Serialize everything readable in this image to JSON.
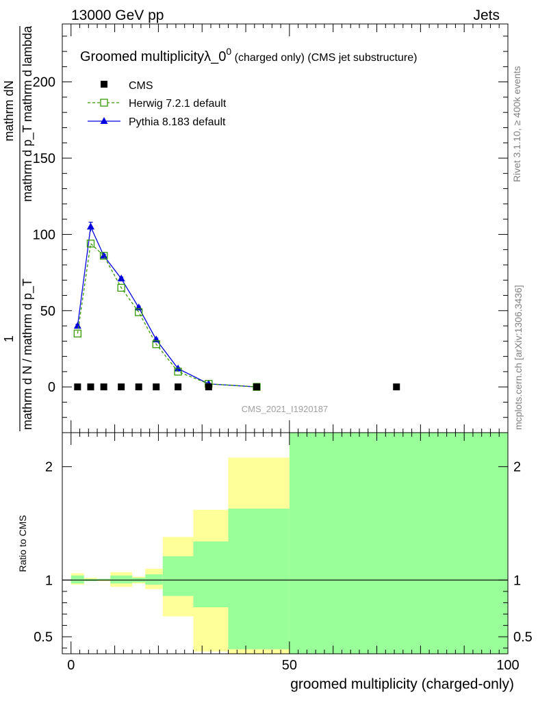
{
  "header": {
    "energy_label": "13000 GeV pp",
    "category_label": "Jets"
  },
  "title": {
    "main": "Groomed multiplicityλ_0",
    "superscript": "0",
    "suffix": " (charged only) (CMS jet substructure)"
  },
  "side_labels": {
    "rivet": "Rivet 3.1.10, ≥ 400k events",
    "mcplots": "mcplots.cern.ch [arXiv:1306.3436]"
  },
  "watermark": "CMS_2021_I1920187",
  "axes": {
    "ylabel_main_numerator": "mathrm dN",
    "ylabel_main_numerator_full": "mathrm d p_T mathrm d lambda",
    "ylabel_main_one": "1",
    "ylabel_main_denominator": "mathrm d N / mathrm d p_T",
    "ylabel_ratio": "Ratio to CMS",
    "xlabel": "groomed multiplicity (charged-only)"
  },
  "chart_data": {
    "type": "line",
    "main": {
      "xlim": [
        -2,
        100
      ],
      "ylim": [
        -30,
        238
      ],
      "yticks": [
        0,
        50,
        100,
        150,
        200
      ],
      "series": [
        {
          "name": "CMS",
          "color": "#000000",
          "marker": "square",
          "x": [
            1.5,
            4.5,
            7.5,
            11.5,
            15.5,
            19.5,
            24.5,
            31.5,
            42.5,
            74.5
          ],
          "y": [
            0,
            0,
            0,
            0,
            0,
            0,
            0,
            0,
            0,
            0
          ]
        },
        {
          "name": "Herwig 7.2.1 default",
          "color": "#339900",
          "marker": "open-square",
          "line": "dashed",
          "x": [
            1.5,
            4.5,
            7.5,
            11.5,
            15.5,
            19.5,
            24.5,
            31.5,
            42.5
          ],
          "y": [
            35,
            94,
            86,
            65,
            49,
            28,
            10,
            2,
            0
          ]
        },
        {
          "name": "Pythia 8.183 default",
          "color": "#0000dd",
          "marker": "triangle",
          "line": "solid",
          "x": [
            1.5,
            4.5,
            7.5,
            11.5,
            15.5,
            19.5,
            24.5,
            31.5,
            42.5
          ],
          "y": [
            40,
            105,
            86,
            71,
            52,
            31,
            12,
            2,
            0
          ],
          "yerr": [
            1,
            3,
            1,
            1,
            1,
            1,
            0.5,
            0.3,
            0.1
          ]
        }
      ]
    },
    "ratio": {
      "ylim": [
        0.35,
        2.3
      ],
      "yticks": [
        0.5,
        1,
        2
      ],
      "xticks": [
        0,
        50,
        100
      ],
      "reference": 1,
      "bands": [
        {
          "x0": 0,
          "x1": 3,
          "yellow": [
            0.96,
            1.06
          ],
          "green": [
            0.97,
            1.04
          ]
        },
        {
          "x0": 3,
          "x1": 6,
          "yellow": [
            0.99,
            1.02
          ],
          "green": [
            0.99,
            1.01
          ]
        },
        {
          "x0": 6,
          "x1": 9,
          "yellow": [
            0.99,
            1.01
          ],
          "green": [
            0.995,
            1.01
          ]
        },
        {
          "x0": 9,
          "x1": 14,
          "yellow": [
            0.94,
            1.07
          ],
          "green": [
            0.97,
            1.04
          ]
        },
        {
          "x0": 14,
          "x1": 17,
          "yellow": [
            0.97,
            1.03
          ],
          "green": [
            0.98,
            1.02
          ]
        },
        {
          "x0": 17,
          "x1": 21,
          "yellow": [
            0.92,
            1.1
          ],
          "green": [
            0.96,
            1.05
          ]
        },
        {
          "x0": 21,
          "x1": 28,
          "yellow": [
            0.68,
            1.38
          ],
          "green": [
            0.86,
            1.21
          ]
        },
        {
          "x0": 28,
          "x1": 36,
          "yellow": [
            0.37,
            1.62
          ],
          "green": [
            0.76,
            1.34
          ]
        },
        {
          "x0": 36,
          "x1": 50,
          "yellow": [
            0.35,
            2.08
          ],
          "green": [
            0.39,
            1.63
          ]
        },
        {
          "x0": 50,
          "x1": 100,
          "yellow": [
            0.35,
            2.3
          ],
          "green": [
            0.35,
            2.3
          ]
        }
      ]
    }
  }
}
